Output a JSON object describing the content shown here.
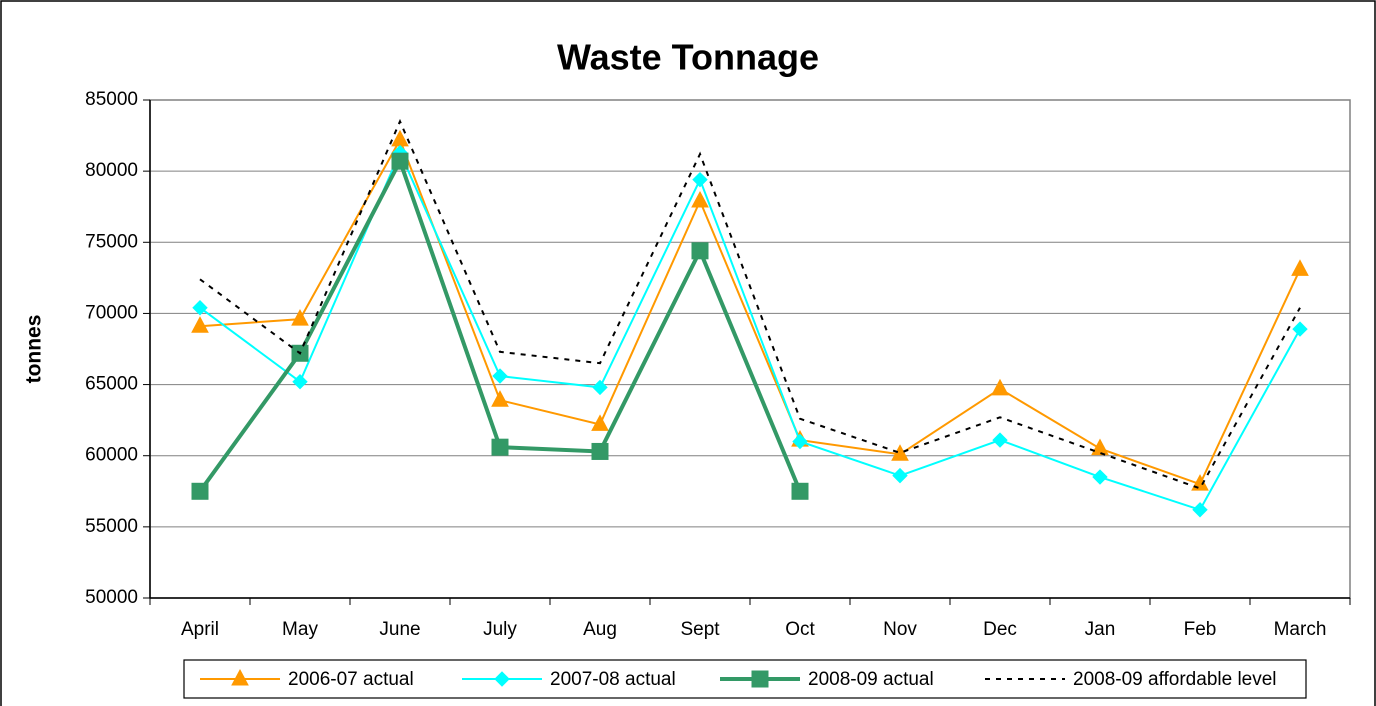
{
  "chart_data": {
    "type": "line",
    "title": "Waste Tonnage",
    "y_label": "tonnes",
    "categories": [
      "April",
      "May",
      "June",
      "July",
      "Aug",
      "Sept",
      "Oct",
      "Nov",
      "Dec",
      "Jan",
      "Feb",
      "March"
    ],
    "ylim": [
      50000,
      85000
    ],
    "yticks": [
      50000,
      55000,
      60000,
      65000,
      70000,
      75000,
      80000,
      85000
    ],
    "grid": true,
    "legend": "bottom",
    "series": [
      {
        "name": "2006-07 actual",
        "color": "#ff9900",
        "marker": "triangle",
        "values": [
          69100,
          69600,
          82200,
          63900,
          62200,
          77900,
          61100,
          60100,
          64700,
          60500,
          58000,
          73100
        ]
      },
      {
        "name": "2007-08 actual",
        "color": "#00ffff",
        "marker": "diamond",
        "values": [
          70400,
          65200,
          81300,
          65600,
          64800,
          79400,
          61000,
          58600,
          61100,
          58500,
          56200,
          68900
        ]
      },
      {
        "name": "2008-09 actual",
        "color": "#339966",
        "marker": "square",
        "width": 4,
        "values": [
          57500,
          67200,
          80700,
          60600,
          60300,
          74400,
          57500,
          null,
          null,
          null,
          null,
          null
        ]
      },
      {
        "name": "2008-09 affordable level",
        "color": "#000000",
        "dashed": true,
        "values": [
          72400,
          67200,
          83500,
          67300,
          66500,
          81200,
          62600,
          60200,
          62700,
          60200,
          57700,
          70400
        ]
      }
    ]
  }
}
